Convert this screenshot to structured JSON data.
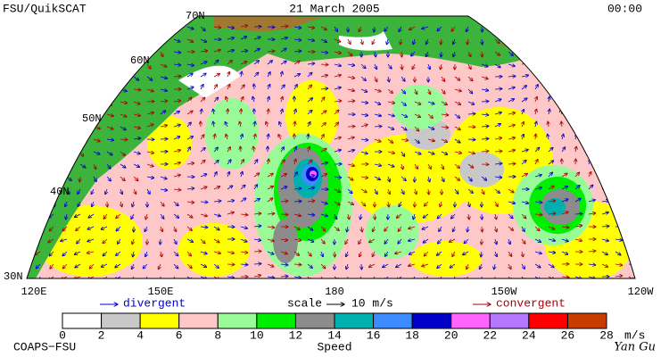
{
  "header": {
    "left": "FSU/QuikSCAT",
    "center": "21 March 2005",
    "right": "00:00"
  },
  "map": {
    "lat_labels": [
      "70N",
      "60N",
      "50N",
      "40N",
      "30N"
    ],
    "lon_labels": [
      "120E",
      "150E",
      "180",
      "150W",
      "120W"
    ]
  },
  "legend": {
    "divergent": "divergent",
    "scale": "scale",
    "scale_value": "10 m/s",
    "convergent": "convergent"
  },
  "colorbar": {
    "ticks": [
      0,
      2,
      4,
      6,
      8,
      10,
      12,
      14,
      16,
      18,
      20,
      22,
      24,
      26,
      28
    ],
    "colors": [
      "#ffffff",
      "#c8c8c8",
      "#ffff00",
      "#ffc8c8",
      "#98fb98",
      "#00ee00",
      "#8c8c8c",
      "#00b0b0",
      "#3c8cff",
      "#0000c8",
      "#ff64ff",
      "#b478ff",
      "#ff0000",
      "#c83c00",
      "#000000"
    ],
    "unit": "m/s",
    "title": "Speed"
  },
  "footer": {
    "left": "COAPS−FSU",
    "right": "Yan Gu"
  }
}
